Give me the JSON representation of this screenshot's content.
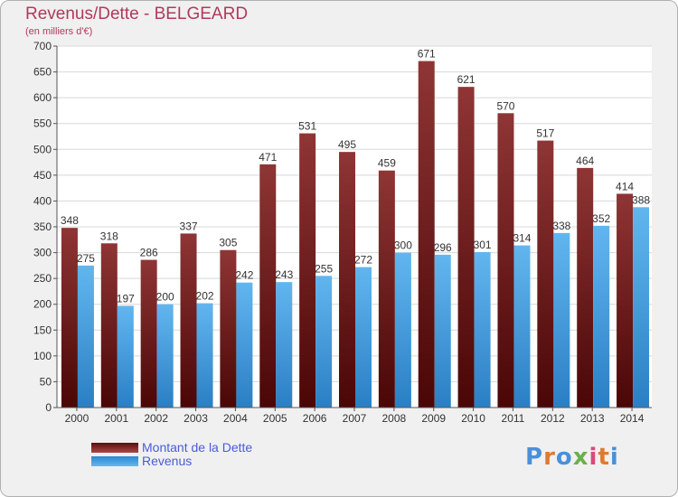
{
  "title": "Revenus/Dette - BELGEARD",
  "subtitle": "(en milliers d'€)",
  "colors": {
    "title": "#b03a5b",
    "debt_dark": "#5c0d0d",
    "debt_light": "#a84848",
    "revenue_dark": "#2a86cf",
    "revenue_light": "#66b8f0",
    "legend_text": "#4a5bd8"
  },
  "legend": {
    "debt_label": "Montant de la Dette",
    "revenue_label": "Revenus"
  },
  "logo": {
    "text": "Proxiti",
    "letter_colors": [
      "#4a90d9",
      "#e07a2e",
      "#4a90d9",
      "#6ab04c",
      "#d94a7a",
      "#e07a2e",
      "#4a90d9"
    ]
  },
  "chart_data": {
    "type": "bar",
    "categories": [
      "2000",
      "2001",
      "2002",
      "2003",
      "2004",
      "2005",
      "2006",
      "2007",
      "2008",
      "2009",
      "2010",
      "2011",
      "2012",
      "2013",
      "2014"
    ],
    "series": [
      {
        "name": "Montant de la Dette",
        "values": [
          348,
          318,
          286,
          337,
          305,
          471,
          531,
          495,
          459,
          671,
          621,
          570,
          517,
          464,
          414
        ]
      },
      {
        "name": "Revenus",
        "values": [
          275,
          197,
          200,
          202,
          242,
          243,
          255,
          272,
          300,
          296,
          301,
          314,
          338,
          352,
          388
        ]
      }
    ],
    "ylim": [
      0,
      700
    ],
    "yticks": [
      0,
      50,
      100,
      150,
      200,
      250,
      300,
      350,
      400,
      450,
      500,
      550,
      600,
      650,
      700
    ],
    "grid": true,
    "legend_position": "bottom-left"
  }
}
